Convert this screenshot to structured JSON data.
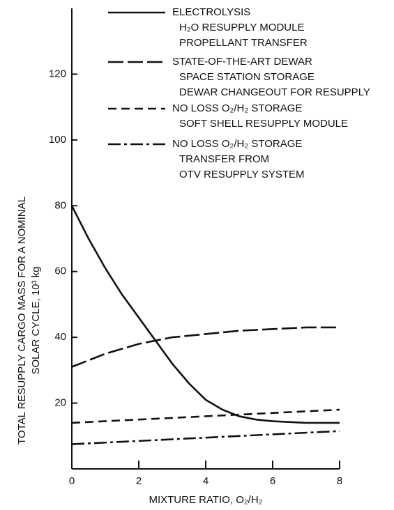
{
  "chart_data": {
    "type": "line",
    "x_label": "MIXTURE RATIO, O₂/H₂",
    "y_label": "TOTAL RESUPPLY CARGO MASS FOR A NOMINAL\nSOLAR CYCLE, 10³ kg",
    "xlim": [
      0,
      8
    ],
    "xticks": [
      0,
      2,
      4,
      6,
      8
    ],
    "ylim": [
      0,
      140
    ],
    "yticks": [
      20,
      40,
      60,
      80,
      100,
      120
    ],
    "series": [
      {
        "name": "ELECTROLYSIS\nH₂O RESUPPLY MODULE\nPROPELLANT TRANSFER",
        "color": "#111111",
        "dash": "solid",
        "x": [
          0,
          0.5,
          1,
          1.5,
          2,
          2.5,
          3,
          3.5,
          4,
          4.5,
          5,
          5.5,
          6,
          7,
          8
        ],
        "values": [
          80,
          70,
          61,
          53,
          46,
          39,
          32,
          26,
          21,
          18,
          16,
          15,
          14.5,
          14,
          14
        ]
      },
      {
        "name": "STATE-OF-THE-ART DEWAR\nSPACE STATION STORAGE\nDEWAR CHANGEOUT FOR RESUPPLY",
        "color": "#111111",
        "dash": "long",
        "x": [
          0,
          1,
          2,
          3,
          4,
          5,
          6,
          7,
          8
        ],
        "values": [
          31,
          35,
          38,
          40,
          41,
          42,
          42.5,
          43,
          43
        ]
      },
      {
        "name": "NO LOSS O₂/H₂ STORAGE\nSOFT SHELL RESUPPLY MODULE",
        "color": "#111111",
        "dash": "short",
        "x": [
          0,
          2,
          4,
          6,
          8
        ],
        "values": [
          14,
          15,
          16,
          17,
          18
        ]
      },
      {
        "name": "NO LOSS O₂/H₂ STORAGE\nTRANSFER FROM\nOTV RESUPPLY SYSTEM",
        "color": "#111111",
        "dash": "dashdot",
        "x": [
          0,
          2,
          4,
          6,
          8
        ],
        "values": [
          7.5,
          8.5,
          9.5,
          10.5,
          11.5
        ]
      }
    ]
  }
}
